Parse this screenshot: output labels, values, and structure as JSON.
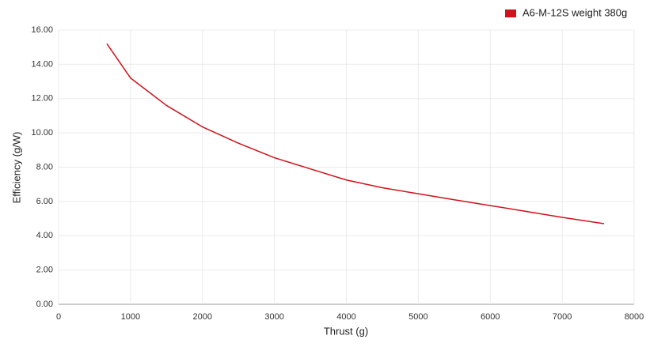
{
  "chart_data": {
    "type": "line",
    "x_label": "Thrust (g)",
    "y_label": "Efficiency (g/W)",
    "xlim": [
      0,
      8000
    ],
    "xticks": [
      0,
      1000,
      2000,
      3000,
      4000,
      5000,
      6000,
      7000,
      8000
    ],
    "ylim": [
      0,
      16
    ],
    "yticks": [
      {
        "value": 0,
        "label": "0.00"
      },
      {
        "value": 2,
        "label": "2.00"
      },
      {
        "value": 4,
        "label": "4.00"
      },
      {
        "value": 6,
        "label": "6.00"
      },
      {
        "value": 8,
        "label": "8.00"
      },
      {
        "value": 10,
        "label": "10.00"
      },
      {
        "value": 12,
        "label": "12.00"
      },
      {
        "value": 14,
        "label": "14.00"
      },
      {
        "value": 16,
        "label": "16.00"
      }
    ],
    "grid": true,
    "legend": "top-right",
    "series": [
      {
        "name": "A6-M-12S weight 380g",
        "color": "#d0121b",
        "x": [
          671,
          1000,
          1500,
          2000,
          2500,
          3000,
          3500,
          4000,
          4500,
          5000,
          5500,
          6000,
          6500,
          7000,
          7582
        ],
        "values": [
          15.2,
          13.2,
          11.6,
          10.35,
          9.4,
          8.55,
          7.9,
          7.25,
          6.8,
          6.45,
          6.1,
          5.76,
          5.42,
          5.07,
          4.7
        ]
      }
    ]
  }
}
